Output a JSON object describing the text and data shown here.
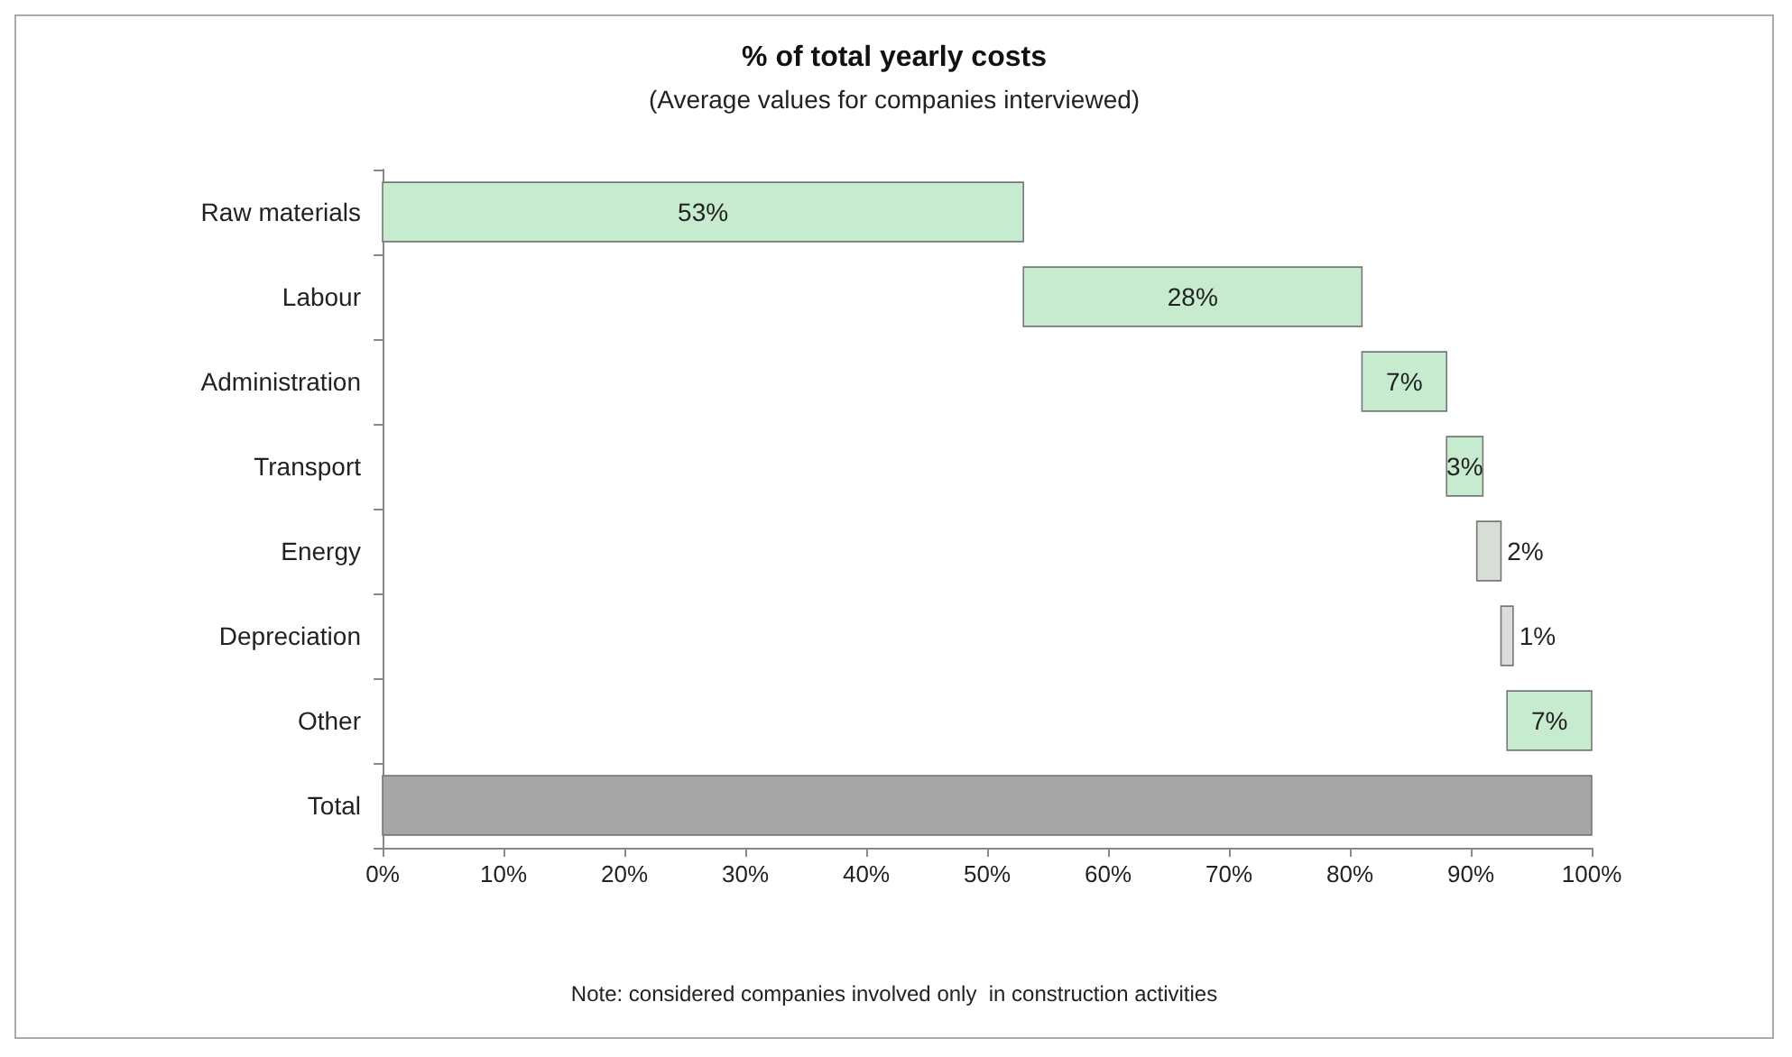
{
  "chart_data": {
    "type": "bar",
    "orientation": "horizontal",
    "title": "% of total yearly costs",
    "subtitle": "(Average values for companies interviewed)",
    "categories": [
      "Raw materials",
      "Labour",
      "Administration",
      "Transport",
      "Energy",
      "Depreciation",
      "Other",
      "Total"
    ],
    "values": [
      53,
      28,
      7,
      3,
      2,
      1,
      7,
      100
    ],
    "base": [
      0,
      53,
      81,
      88,
      90.5,
      92.5,
      93,
      0
    ],
    "value_labels": [
      "53%",
      "28%",
      "7%",
      "3%",
      "2%",
      "1%",
      "7%",
      null
    ],
    "colors": [
      "#c6ebcf",
      "#c6ebcf",
      "#c6ebcf",
      "#c6ebcf",
      "#d6ded6",
      "#dcdcdc",
      "#c6ebcf",
      "#a6a6a6"
    ],
    "xlim": [
      0,
      100
    ],
    "xticks": [
      {
        "value": 0,
        "label": "0%"
      },
      {
        "value": 10,
        "label": "10%"
      },
      {
        "value": 20,
        "label": "20%"
      },
      {
        "value": 30,
        "label": "30%"
      },
      {
        "value": 40,
        "label": "40%"
      },
      {
        "value": 50,
        "label": "50%"
      },
      {
        "value": 60,
        "label": "60%"
      },
      {
        "value": 70,
        "label": "70%"
      },
      {
        "value": 80,
        "label": "80%"
      },
      {
        "value": 90,
        "label": "90%"
      },
      {
        "value": 100,
        "label": "100%"
      }
    ],
    "grid": false,
    "annotations": [
      "Note: considered companies involved only  in construction activities"
    ]
  }
}
